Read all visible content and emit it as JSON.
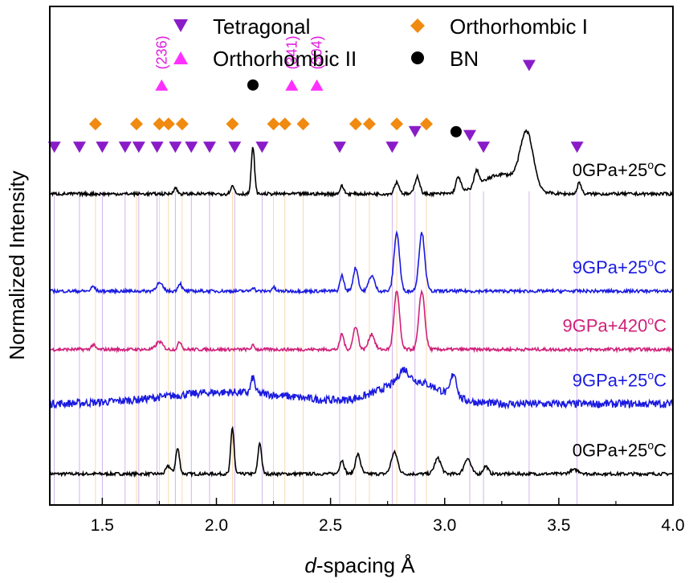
{
  "chart_data": {
    "type": "line",
    "title": "",
    "xlabel_italic": "d",
    "xlabel_rest": "-spacing Å",
    "ylabel": "Normalized Intensity",
    "xlim": [
      1.27,
      4.0
    ],
    "ylim": [
      0,
      1
    ],
    "x_ticks": [
      1.5,
      2.0,
      2.5,
      3.0,
      3.5,
      4.0
    ],
    "x_tick_labels": [
      "1.5",
      "2.0",
      "2.5",
      "3.0",
      "3.5",
      "4.0"
    ],
    "y_tick_labels_shown": false,
    "legend": {
      "placement": "top",
      "entries": [
        {
          "name": "Tetragonal",
          "marker": "triangle-down",
          "color": "#8a1cc8"
        },
        {
          "name": "Orthorhombic I",
          "marker": "diamond",
          "color": "#f08a10"
        },
        {
          "name": "Orthorhombic II",
          "marker": "triangle-up",
          "color": "#ff30ff"
        },
        {
          "name": "BN",
          "marker": "circle",
          "color": "#000000"
        }
      ]
    },
    "series": [
      {
        "label_main": "0GPa+25",
        "label_sup": "o",
        "label_end": "C",
        "color": "#000000",
        "label_color": "#000000",
        "baseline": 0.08,
        "background": [],
        "peaks": [
          [
            1.83,
            0.065,
            0.012
          ],
          [
            1.79,
            0.02,
            0.015
          ],
          [
            2.07,
            0.12,
            0.01
          ],
          [
            2.19,
            0.08,
            0.011
          ],
          [
            2.55,
            0.035,
            0.014
          ],
          [
            2.62,
            0.05,
            0.016
          ],
          [
            2.78,
            0.055,
            0.02
          ],
          [
            2.97,
            0.04,
            0.02
          ],
          [
            3.1,
            0.04,
            0.02
          ],
          [
            3.18,
            0.02,
            0.015
          ],
          [
            3.57,
            0.01,
            0.03
          ]
        ],
        "noise": 0.004
      },
      {
        "label_main": "9GPa+25",
        "label_sup": "o",
        "label_end": "C",
        "color": "#1a1ae0",
        "label_color": "#1a1ae0",
        "baseline": 0.26,
        "background": [
          [
            2.05,
            0.03,
            0.4
          ],
          [
            2.85,
            0.06,
            0.18
          ]
        ],
        "peaks": [
          [
            2.16,
            0.04,
            0.012
          ],
          [
            2.82,
            0.03,
            0.03
          ],
          [
            3.04,
            0.06,
            0.018
          ]
        ],
        "noise": 0.01
      },
      {
        "label_main": "9GPa+420",
        "label_sup": "o",
        "label_end": "C",
        "color": "#d0207a",
        "label_color": "#d0207a",
        "baseline": 0.4,
        "background": [],
        "peaks": [
          [
            1.46,
            0.012,
            0.012
          ],
          [
            1.75,
            0.02,
            0.02
          ],
          [
            1.84,
            0.02,
            0.012
          ],
          [
            2.16,
            0.01,
            0.01
          ],
          [
            2.55,
            0.04,
            0.012
          ],
          [
            2.61,
            0.06,
            0.015
          ],
          [
            2.68,
            0.04,
            0.018
          ],
          [
            2.79,
            0.15,
            0.017
          ],
          [
            2.9,
            0.15,
            0.018
          ]
        ],
        "noise": 0.004
      },
      {
        "label_main": "9GPa+25",
        "label_sup": "o",
        "label_end": "C",
        "color": "#1a1ae0",
        "label_color": "#1a1ae0",
        "baseline": 0.55,
        "background": [],
        "peaks": [
          [
            1.46,
            0.012,
            0.012
          ],
          [
            1.75,
            0.02,
            0.02
          ],
          [
            1.84,
            0.02,
            0.012
          ],
          [
            2.16,
            0.01,
            0.01
          ],
          [
            2.25,
            0.01,
            0.01
          ],
          [
            2.55,
            0.04,
            0.012
          ],
          [
            2.61,
            0.06,
            0.015
          ],
          [
            2.68,
            0.04,
            0.018
          ],
          [
            2.79,
            0.15,
            0.017
          ],
          [
            2.9,
            0.15,
            0.018
          ]
        ],
        "noise": 0.004
      },
      {
        "label_main": "0GPa+25",
        "label_sup": "o",
        "label_end": "C",
        "color": "#000000",
        "label_color": "#000000",
        "baseline": 0.8,
        "background": [
          [
            3.25,
            0.05,
            0.12
          ]
        ],
        "peaks": [
          [
            1.82,
            0.015,
            0.012
          ],
          [
            2.07,
            0.02,
            0.012
          ],
          [
            2.16,
            0.12,
            0.01
          ],
          [
            2.55,
            0.02,
            0.012
          ],
          [
            2.79,
            0.03,
            0.015
          ],
          [
            2.88,
            0.045,
            0.015
          ],
          [
            3.06,
            0.04,
            0.015
          ],
          [
            3.14,
            0.04,
            0.015
          ],
          [
            3.36,
            0.14,
            0.04
          ],
          [
            3.59,
            0.03,
            0.012
          ]
        ],
        "noise": 0.004
      }
    ],
    "markers": {
      "tetragonal": {
        "x": [
          1.29,
          1.4,
          1.5,
          1.6,
          1.66,
          1.74,
          1.82,
          1.89,
          1.97,
          2.08,
          2.2,
          2.54,
          2.77,
          2.87,
          3.11,
          3.17,
          3.37,
          3.58
        ],
        "y": [
          0.92,
          0.92,
          0.92,
          0.92,
          0.92,
          0.92,
          0.92,
          0.92,
          0.92,
          0.92,
          0.92,
          0.92,
          0.92,
          0.96,
          0.95,
          0.92,
          1.13,
          0.92
        ]
      },
      "orthorhombic_I": {
        "x": [
          1.47,
          1.65,
          1.75,
          1.79,
          1.85,
          2.07,
          2.25,
          2.3,
          2.38,
          2.61,
          2.67,
          2.79,
          2.92
        ],
        "y": [
          0.98,
          0.98,
          0.98,
          0.98,
          0.98,
          0.98,
          0.98,
          0.98,
          0.98,
          0.98,
          0.98,
          0.98,
          0.98
        ]
      },
      "orthorhombic_II": {
        "x": [
          1.76,
          2.33,
          2.44
        ],
        "y": [
          1.08,
          1.08,
          1.08
        ]
      },
      "bn": {
        "x": [
          2.16,
          3.05
        ],
        "y": [
          1.08,
          0.96
        ]
      },
      "hkl_labels": [
        {
          "x": 1.76,
          "text": "(236)"
        },
        {
          "x": 2.33,
          "text": "(341)"
        },
        {
          "x": 2.44,
          "text": "(304)"
        }
      ]
    }
  }
}
